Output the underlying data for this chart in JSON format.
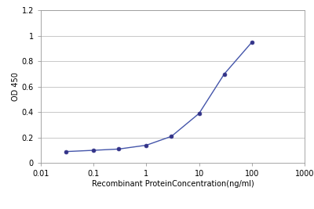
{
  "x": [
    0.03,
    0.1,
    0.3,
    1.0,
    3.0,
    10.0,
    30.0,
    100.0
  ],
  "y": [
    0.09,
    0.1,
    0.11,
    0.14,
    0.21,
    0.39,
    0.7,
    0.95
  ],
  "line_color": "#4455aa",
  "marker_color": "#333388",
  "marker_style": "o",
  "marker_size": 3.5,
  "line_width": 1.0,
  "xlabel": "Recombinant ProteinConcentration(ng/ml)",
  "ylabel": "OD 450",
  "xlim_log": [
    0.01,
    1000
  ],
  "ylim": [
    0,
    1.2
  ],
  "yticks": [
    0,
    0.2,
    0.4,
    0.6,
    0.8,
    1.0,
    1.2
  ],
  "ytick_labels": [
    "0",
    "0.2",
    "0.4",
    "0.6",
    "0.8",
    "1",
    "1.2"
  ],
  "xtick_positions": [
    0.01,
    0.1,
    1,
    10,
    100,
    1000
  ],
  "xtick_labels": [
    "0.01",
    "0.1",
    "1",
    "10",
    "100",
    "1000"
  ],
  "background_color": "#ffffff",
  "grid_color": "#c8c8c8",
  "xlabel_fontsize": 7,
  "ylabel_fontsize": 7,
  "tick_fontsize": 7
}
